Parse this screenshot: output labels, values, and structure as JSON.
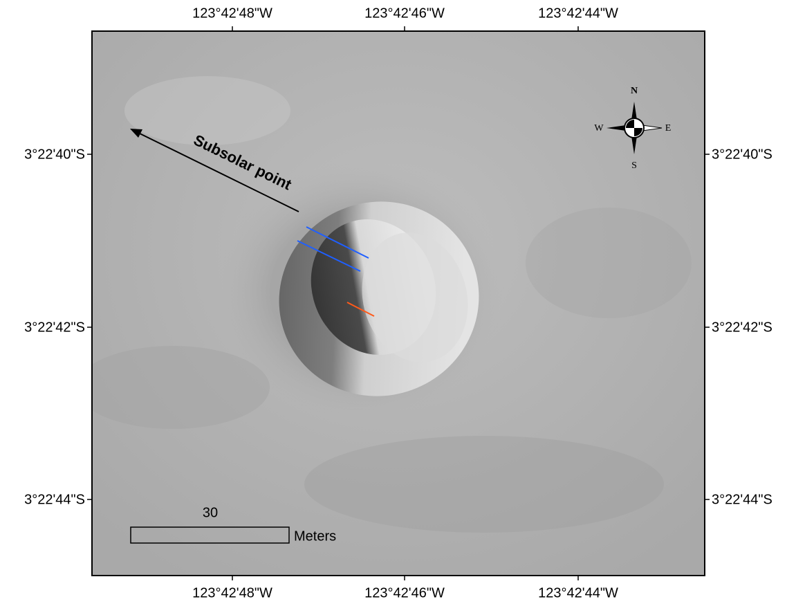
{
  "map": {
    "longitude_labels": [
      "123°42'48\"W",
      "123°42'46\"W",
      "123°42'44\"W"
    ],
    "latitude_labels": [
      "3°22'40\"S",
      "3°22'42\"S",
      "3°22'44\"S"
    ],
    "annotation": "Subsolar point",
    "compass": {
      "north": "N",
      "south": "S",
      "east": "E",
      "west": "W"
    },
    "scale_bar": {
      "length": 30,
      "unit": "Meters"
    }
  }
}
